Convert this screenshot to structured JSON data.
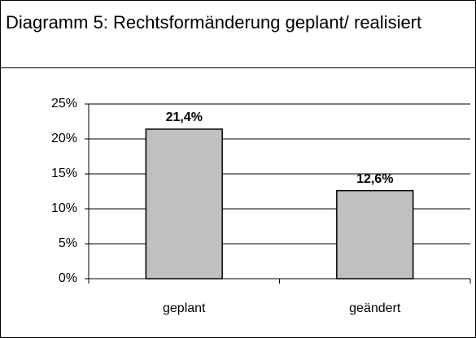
{
  "chart_data": {
    "type": "bar",
    "title": "Diagramm 5: Rechtsformänderung geplant/ realisiert",
    "categories": [
      "geplant",
      "geändert"
    ],
    "values": [
      21.4,
      12.6
    ],
    "value_labels": [
      "21,4%",
      "12,6%"
    ],
    "color": "#c0c0c0",
    "ylim": [
      0,
      25
    ],
    "yticks": [
      {
        "value": 0,
        "label": "0%"
      },
      {
        "value": 5,
        "label": "5%"
      },
      {
        "value": 10,
        "label": "10%"
      },
      {
        "value": 15,
        "label": "15%"
      },
      {
        "value": 20,
        "label": "20%"
      },
      {
        "value": 25,
        "label": "25%"
      }
    ],
    "grid": true
  }
}
